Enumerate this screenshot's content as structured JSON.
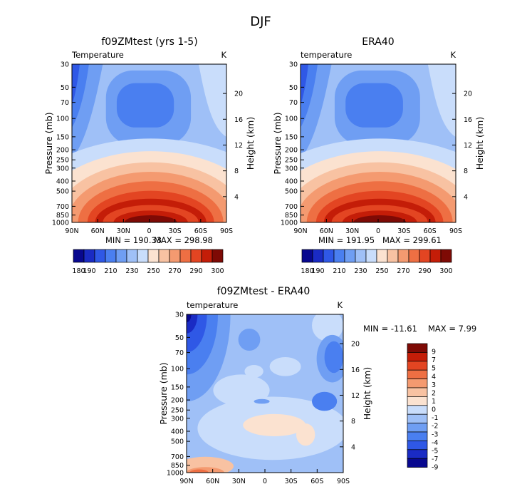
{
  "figure": {
    "title": "DJF"
  },
  "colors": {
    "abs_scale": [
      "#08088f",
      "#1a2bc4",
      "#2f58e6",
      "#4a7ff0",
      "#6f9ef3",
      "#9fc0f7",
      "#c9ddfb",
      "#fbe2d0",
      "#f8c2a2",
      "#f49a70",
      "#ee6f43",
      "#e34522",
      "#c41d08",
      "#7e0a05"
    ],
    "diff_scale": [
      "#08088f",
      "#1a2bc4",
      "#2f58e6",
      "#4a7ff0",
      "#6f9ef3",
      "#9fc0f7",
      "#c9ddfb",
      "#fbe2d0",
      "#f8c2a2",
      "#f49a70",
      "#ee6f43",
      "#e34522",
      "#c41d08",
      "#7e0a05"
    ]
  },
  "chart_data": [
    {
      "type": "heatmap",
      "title": "f09ZMtest (yrs 1-5)",
      "subtitle_left": "Temperature",
      "subtitle_right": "K",
      "ylabel": "Pressure (mb)",
      "ylabel_right": "Height (km)",
      "x_ticks": [
        "90N",
        "60N",
        "30N",
        "0",
        "30S",
        "60S",
        "90S"
      ],
      "y_ticks": [
        30,
        50,
        70,
        100,
        150,
        200,
        250,
        300,
        400,
        500,
        700,
        850,
        1000
      ],
      "y_scale": "log",
      "height_ticks": [
        20,
        16,
        12,
        8,
        4
      ],
      "min_label": "MIN = 190.33",
      "max_label": "MAX = 298.98",
      "colorbar_labels": [
        "180",
        "190",
        "210",
        "230",
        "250",
        "270",
        "290",
        "300"
      ],
      "level_values": [
        180,
        190,
        200,
        210,
        220,
        230,
        240,
        250,
        260,
        270,
        280,
        290,
        300
      ]
    },
    {
      "type": "heatmap",
      "title": "ERA40",
      "subtitle_left": "temperature",
      "subtitle_right": "K",
      "ylabel": "Pressure (mb)",
      "ylabel_right": "Height (km)",
      "x_ticks": [
        "90N",
        "60N",
        "30N",
        "0",
        "30S",
        "60S",
        "90S"
      ],
      "y_ticks": [
        30,
        50,
        70,
        100,
        150,
        200,
        250,
        300,
        400,
        500,
        700,
        850,
        1000
      ],
      "y_scale": "log",
      "height_ticks": [
        20,
        16,
        12,
        8,
        4
      ],
      "min_label": "MIN = 191.95",
      "max_label": "MAX = 299.61",
      "colorbar_labels": [
        "180",
        "190",
        "210",
        "230",
        "250",
        "270",
        "290",
        "300"
      ],
      "level_values": [
        180,
        190,
        200,
        210,
        220,
        230,
        240,
        250,
        260,
        270,
        280,
        290,
        300
      ]
    },
    {
      "type": "heatmap",
      "title": "f09ZMtest - ERA40",
      "subtitle_left": "temperature",
      "subtitle_right": "K",
      "ylabel": "Pressure (mb)",
      "ylabel_right": "Height (km)",
      "x_ticks": [
        "90N",
        "60N",
        "30N",
        "0",
        "30S",
        "60S",
        "90S"
      ],
      "y_ticks": [
        30,
        50,
        70,
        100,
        150,
        200,
        250,
        300,
        400,
        500,
        700,
        850,
        1000
      ],
      "y_scale": "log",
      "height_ticks": [
        20,
        16,
        12,
        8,
        4
      ],
      "min_label": "MIN = -11.61",
      "max_label": "MAX =   7.99",
      "colorbar_labels": [
        "9",
        "7",
        "5",
        "4",
        "3",
        "2",
        "1",
        "0",
        "-1",
        "-2",
        "-3",
        "-4",
        "-5",
        "-7",
        "-9"
      ],
      "level_values": [
        9,
        7,
        5,
        4,
        3,
        2,
        1,
        0,
        -1,
        -2,
        -3,
        -4,
        -5,
        -7,
        -9
      ]
    }
  ]
}
